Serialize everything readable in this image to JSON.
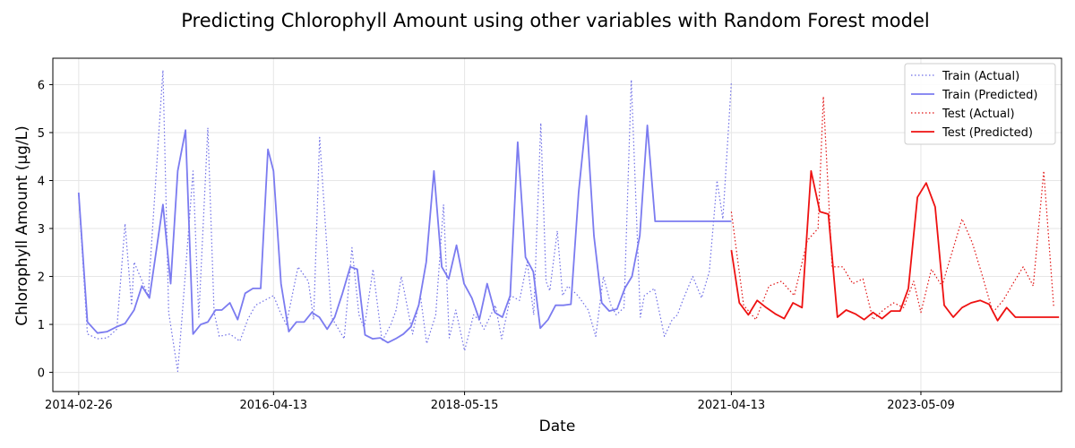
{
  "chart_data": {
    "type": "line",
    "title": "Predicting Chlorophyll Amount using other variables with Random Forest model",
    "xlabel": "Date",
    "ylabel": "Chlorophyll Amount (µg/L)",
    "xlim": [
      "2013-11-15",
      "2024-11-20"
    ],
    "ylim": [
      -0.4,
      6.55
    ],
    "grid": true,
    "legend_position": "top-right",
    "x_ticks": [
      "2014-02-26",
      "2016-04-13",
      "2018-05-15",
      "2021-04-13",
      "2023-05-09"
    ],
    "y_ticks": [
      0,
      1,
      2,
      3,
      4,
      5,
      6
    ],
    "series": [
      {
        "name": "Train (Actual)",
        "color": "#6e6ee6",
        "style": "dotted",
        "x": [
          "2014-02-26",
          "2014-04-02",
          "2014-05-12",
          "2014-06-20",
          "2014-07-28",
          "2014-10-05",
          "2014-11-30",
          "2015-01-28",
          "2015-03-28",
          "2015-05-28",
          "2015-07-26",
          "2015-09-10",
          "2015-10-22",
          "2015-12-01",
          "2016-02-01",
          "2016-04-13",
          "2016-06-03",
          "2016-07-20",
          "2016-08-30",
          "2016-10-14",
          "2017-01-20",
          "2017-04-10",
          "2017-06-20",
          "2017-09-05",
          "2017-12-15",
          "2018-03-15",
          "2018-05-15",
          "2018-08-01",
          "2018-10-10",
          "2019-01-20",
          "2019-03-15",
          "2019-04-05",
          "2019-04-20",
          "2019-05-20",
          "2019-07-01",
          "2019-08-10",
          "2019-10-20",
          "2019-11-20",
          "2020-01-10",
          "2020-03-10",
          "2020-05-01",
          "2020-06-10",
          "2020-07-20",
          "2020-08-20",
          "2020-10-01",
          "2020-12-15",
          "2021-02-15",
          "2021-04-13",
          "2014-08-30",
          "2014-09-25",
          "2015-02-20",
          "2015-04-15",
          "2015-06-20",
          "2015-08-20",
          "2016-01-01",
          "2016-05-10",
          "2016-09-20",
          "2016-11-30",
          "2017-02-20",
          "2017-03-20",
          "2017-05-15",
          "2017-07-25",
          "2017-08-15",
          "2017-10-20",
          "2017-11-20",
          "2018-01-20",
          "2018-02-20",
          "2018-04-10",
          "2018-06-20",
          "2018-07-10",
          "2018-09-15",
          "2018-11-15",
          "2018-12-20",
          "2019-02-15",
          "2019-06-10",
          "2019-09-20",
          "2019-12-20",
          "2020-02-10",
          "2020-04-15",
          "2020-09-10",
          "2020-11-10",
          "2021-01-15",
          "2021-03-10"
        ],
        "values": [
          3.7,
          0.8,
          0.7,
          0.72,
          0.9,
          2.3,
          1.6,
          6.3,
          0.02,
          4.2,
          5.1,
          0.75,
          0.8,
          0.65,
          1.4,
          1.6,
          1.0,
          2.2,
          1.9,
          4.9,
          0.7,
          0.92,
          0.65,
          2.0,
          0.6,
          0.72,
          0.45,
          0.9,
          0.7,
          2.3,
          5.2,
          1.9,
          1.7,
          2.95,
          1.8,
          1.6,
          0.75,
          2.0,
          1.2,
          6.1,
          1.6,
          1.75,
          0.75,
          1.1,
          1.5,
          1.55,
          4.0,
          6.05,
          3.1,
          1.4,
          1.25,
          1.2,
          1.15,
          1.25,
          1.1,
          1.25,
          1.1,
          1.15,
          2.6,
          1.2,
          2.15,
          1.0,
          1.3,
          0.8,
          1.6,
          1.2,
          3.5,
          1.3,
          1.2,
          1.1,
          1.4,
          1.6,
          1.5,
          1.2,
          1.6,
          1.3,
          1.4,
          1.35,
          1.15,
          1.2,
          2.0,
          2.1,
          3.2
        ]
      },
      {
        "name": "Train (Predicted)",
        "color": "#7b7bf0",
        "style": "solid",
        "x": [
          "2014-02-26",
          "2014-04-02",
          "2014-05-12",
          "2014-06-20",
          "2014-07-28",
          "2014-08-30",
          "2014-10-05",
          "2014-11-05",
          "2014-12-05",
          "2015-01-28",
          "2015-02-28",
          "2015-03-28",
          "2015-04-28",
          "2015-05-28",
          "2015-06-28",
          "2015-07-26",
          "2015-08-26",
          "2015-09-20",
          "2015-10-22",
          "2015-11-22",
          "2015-12-22",
          "2016-01-22",
          "2016-02-22",
          "2016-03-22",
          "2016-04-13",
          "2016-05-13",
          "2016-06-13",
          "2016-07-13",
          "2016-08-13",
          "2016-09-13",
          "2016-10-13",
          "2016-11-13",
          "2016-12-13",
          "2017-01-13",
          "2017-02-13",
          "2017-03-13",
          "2017-04-13",
          "2017-05-13",
          "2017-06-13",
          "2017-07-13",
          "2017-08-13",
          "2017-09-13",
          "2017-10-13",
          "2017-11-13",
          "2017-12-13",
          "2018-01-13",
          "2018-02-13",
          "2018-03-13",
          "2018-04-13",
          "2018-05-13",
          "2018-06-13",
          "2018-07-13",
          "2018-08-13",
          "2018-09-13",
          "2018-10-13",
          "2018-11-13",
          "2018-12-13",
          "2019-01-13",
          "2019-02-13",
          "2019-03-13",
          "2019-04-13",
          "2019-05-13",
          "2019-06-13",
          "2019-07-13",
          "2019-08-13",
          "2019-09-13",
          "2019-10-13",
          "2019-11-13",
          "2019-12-13",
          "2020-01-13",
          "2020-02-13",
          "2020-03-13",
          "2020-04-13",
          "2020-05-13",
          "2020-06-13",
          "2020-07-13",
          "2020-08-13",
          "2020-09-13",
          "2020-10-13",
          "2020-11-13",
          "2020-12-13",
          "2021-01-13",
          "2021-02-13",
          "2021-03-13",
          "2021-04-13"
        ],
        "values": [
          3.75,
          1.05,
          0.82,
          0.85,
          0.95,
          1.02,
          1.3,
          1.8,
          1.55,
          3.5,
          1.85,
          4.2,
          5.05,
          0.8,
          1.0,
          1.05,
          1.3,
          1.3,
          1.45,
          1.1,
          1.65,
          1.75,
          1.75,
          4.65,
          4.2,
          1.85,
          0.85,
          1.05,
          1.05,
          1.25,
          1.15,
          0.9,
          1.15,
          1.65,
          2.2,
          2.15,
          0.78,
          0.7,
          0.72,
          0.62,
          0.7,
          0.8,
          0.95,
          1.4,
          2.3,
          4.2,
          2.2,
          1.95,
          2.65,
          1.85,
          1.55,
          1.1,
          1.85,
          1.25,
          1.15,
          1.6,
          4.8,
          2.4,
          2.1,
          0.92,
          1.1,
          1.4,
          1.4,
          1.42,
          3.75,
          5.35,
          2.85,
          1.45,
          1.28,
          1.32,
          1.75,
          2.0,
          2.85,
          5.15,
          3.15,
          3.15,
          3.15,
          3.15,
          3.15,
          3.15,
          3.15,
          3.15,
          3.15,
          3.15,
          3.15
        ]
      },
      {
        "name": "Test (Actual)",
        "color": "#e01010",
        "style": "dotted",
        "x": [
          "2021-04-13",
          "2021-06-01",
          "2021-07-20",
          "2021-09-10",
          "2021-10-30",
          "2021-12-20",
          "2022-02-10",
          "2022-03-25",
          "2022-04-15",
          "2022-05-20",
          "2022-07-01",
          "2022-08-10",
          "2022-09-20",
          "2022-10-30",
          "2022-12-10",
          "2023-01-20",
          "2023-03-01",
          "2023-04-10",
          "2023-05-09",
          "2023-06-20",
          "2023-08-01",
          "2023-09-10",
          "2023-10-20",
          "2023-11-30",
          "2024-01-10",
          "2024-02-20",
          "2024-04-01",
          "2024-05-10",
          "2024-06-20",
          "2024-07-30",
          "2024-09-10",
          "2024-10-20"
        ],
        "values": [
          3.35,
          1.4,
          1.1,
          1.8,
          1.9,
          1.6,
          2.75,
          3.0,
          5.75,
          2.2,
          2.2,
          1.85,
          1.95,
          1.1,
          1.3,
          1.45,
          1.35,
          1.9,
          1.25,
          2.15,
          1.8,
          2.5,
          3.2,
          2.7,
          2.0,
          1.25,
          1.5,
          1.85,
          2.2,
          1.8,
          4.2,
          1.35
        ]
      },
      {
        "name": "Test (Predicted)",
        "color": "#ee1111",
        "style": "solid",
        "x": [
          "2021-04-13",
          "2021-05-15",
          "2021-06-20",
          "2021-07-25",
          "2021-08-30",
          "2021-10-05",
          "2021-11-10",
          "2021-12-15",
          "2022-01-20",
          "2022-02-25",
          "2022-04-01",
          "2022-05-05",
          "2022-06-10",
          "2022-07-15",
          "2022-08-20",
          "2022-09-25",
          "2022-10-30",
          "2022-12-05",
          "2023-01-10",
          "2023-02-15",
          "2023-03-20",
          "2023-04-25",
          "2023-05-30",
          "2023-07-05",
          "2023-08-10",
          "2023-09-15",
          "2023-10-20",
          "2023-11-25",
          "2024-01-01",
          "2024-02-05",
          "2024-03-10",
          "2024-04-15",
          "2024-05-20",
          "2024-06-25",
          "2024-07-30",
          "2024-09-05",
          "2024-10-10",
          "2024-11-10"
        ],
        "values": [
          2.55,
          1.45,
          1.2,
          1.5,
          1.35,
          1.22,
          1.12,
          1.45,
          1.35,
          4.2,
          3.35,
          3.3,
          1.15,
          1.3,
          1.22,
          1.1,
          1.25,
          1.12,
          1.28,
          1.28,
          1.75,
          3.65,
          3.95,
          3.45,
          1.4,
          1.15,
          1.35,
          1.45,
          1.5,
          1.42,
          1.08,
          1.35,
          1.15,
          1.15,
          1.15,
          1.15,
          1.15,
          1.15
        ]
      }
    ]
  }
}
